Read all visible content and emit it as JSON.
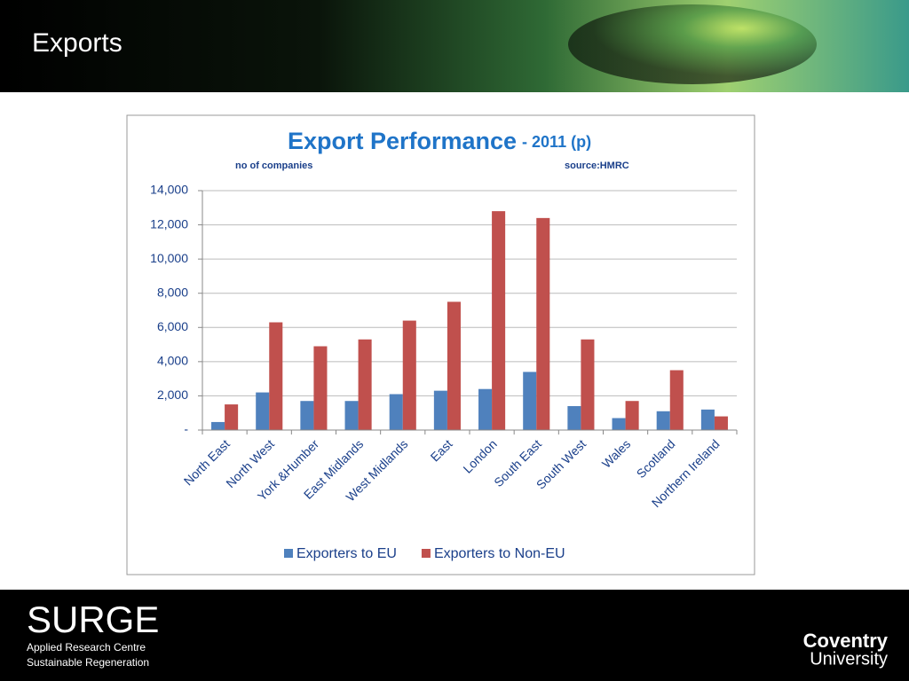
{
  "slide": {
    "title": "Exports"
  },
  "chart_data": {
    "type": "bar",
    "title": "Export Performance",
    "subtitle": "- 2011 (p)",
    "annotations": [
      "no of companies",
      "source:HMRC"
    ],
    "categories": [
      "North East",
      "North West",
      "York &Humber",
      "East Midlands",
      "West Midlands",
      "East",
      "London",
      "South East",
      "South West",
      "Wales",
      "Scotland",
      "Northern Ireland"
    ],
    "series": [
      {
        "name": "Exporters to EU",
        "color": "#4f81bd",
        "values": [
          470,
          2200,
          1700,
          1700,
          2100,
          2300,
          2400,
          3400,
          1400,
          700,
          1100,
          1200
        ]
      },
      {
        "name": "Exporters to Non-EU",
        "color": "#c0504d",
        "values": [
          1500,
          6300,
          4900,
          5300,
          6400,
          7500,
          12800,
          12400,
          5300,
          1700,
          3500,
          800
        ]
      }
    ],
    "ylim": [
      0,
      14000
    ],
    "yticks": [
      {
        "value": 0,
        "label": "-"
      },
      {
        "value": 2000,
        "label": "2,000"
      },
      {
        "value": 4000,
        "label": "4,000"
      },
      {
        "value": 6000,
        "label": "6,000"
      },
      {
        "value": 8000,
        "label": "8,000"
      },
      {
        "value": 10000,
        "label": "10,000"
      },
      {
        "value": 12000,
        "label": "12,000"
      },
      {
        "value": 14000,
        "label": "14,000"
      }
    ],
    "grid": true,
    "legend": "bottom"
  },
  "footer": {
    "logo": "SURGE",
    "lines": [
      "Applied Research Centre",
      "Sustainable Regeneration"
    ],
    "university": [
      "Coventry",
      "University"
    ]
  }
}
